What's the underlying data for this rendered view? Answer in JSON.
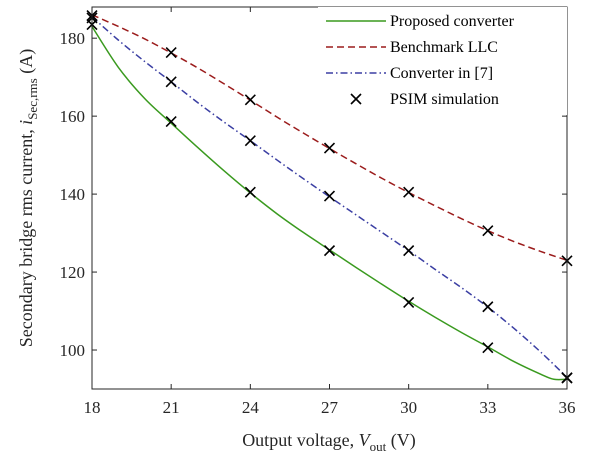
{
  "chart_data": {
    "type": "line",
    "xlabel": {
      "text": "Output voltage, ",
      "var": "V",
      "sub": "out",
      "unit": " (V)"
    },
    "ylabel": {
      "text": "Secondary bridge rms current, ",
      "var": "i",
      "sub": "Sec,rms",
      "unit": " (A)"
    },
    "xlim": [
      18,
      36
    ],
    "ylim": [
      90,
      188
    ],
    "xticks": [
      "18",
      "21",
      "24",
      "27",
      "30",
      "33",
      "36"
    ],
    "yticks": [
      "100",
      "120",
      "140",
      "160",
      "180"
    ],
    "grid": false,
    "legend_position": "top-right",
    "series": [
      {
        "name": "Proposed converter",
        "style": "solid",
        "color": "#3a9a1f",
        "x": [
          18,
          19,
          20,
          21,
          22,
          23,
          24,
          25,
          26,
          27,
          28,
          29,
          30,
          31,
          32,
          33,
          34,
          35,
          35.5,
          36
        ],
        "y": [
          183,
          172.5,
          164.5,
          158.2,
          152,
          146,
          140.3,
          135,
          130.2,
          125.7,
          121.2,
          116.8,
          112.5,
          108.4,
          104.5,
          100.8,
          97,
          93.8,
          92.5,
          92.5
        ]
      },
      {
        "name": "Benchmark LLC",
        "style": "dashed",
        "color": "#9b1c1c",
        "x": [
          18,
          19,
          20,
          21,
          22,
          23,
          24,
          25,
          26,
          27,
          28,
          29,
          30,
          31,
          32,
          33,
          34,
          35,
          36
        ],
        "y": [
          186,
          183,
          179.8,
          176.2,
          172.4,
          168.3,
          164.1,
          159.8,
          155.7,
          151.7,
          147.8,
          144,
          140.4,
          137,
          133.7,
          130.6,
          127.8,
          125.3,
          123
        ]
      },
      {
        "name": "Converter in [7]",
        "style": "dashdot",
        "color": "#3b3fa3",
        "x": [
          18,
          19,
          20,
          21,
          22,
          23,
          24,
          25,
          26,
          27,
          28,
          29,
          30,
          31,
          32,
          33,
          34,
          35,
          36
        ],
        "y": [
          185.5,
          179.5,
          174,
          168.8,
          163.5,
          158.5,
          153.7,
          148.8,
          144,
          139.3,
          134.7,
          130.1,
          125.5,
          120.7,
          116,
          111,
          105.5,
          99.5,
          93
        ]
      }
    ],
    "simulation": {
      "name": "PSIM simulation",
      "marker": "x",
      "color": "#000000",
      "points": [
        [
          18,
          183.5
        ],
        [
          18,
          185.2
        ],
        [
          18,
          185.8
        ],
        [
          21,
          158.6
        ],
        [
          21,
          168.8
        ],
        [
          21,
          176.3
        ],
        [
          24,
          140.5
        ],
        [
          24,
          153.7
        ],
        [
          24,
          164.2
        ],
        [
          27,
          125.5
        ],
        [
          27,
          139.5
        ],
        [
          27,
          151.8
        ],
        [
          30,
          112.2
        ],
        [
          30,
          125.5
        ],
        [
          30,
          140.5
        ],
        [
          33,
          100.6
        ],
        [
          33,
          111.1
        ],
        [
          33,
          130.6
        ],
        [
          36,
          92.8
        ],
        [
          36,
          92.9
        ],
        [
          36,
          122.9
        ]
      ]
    }
  }
}
